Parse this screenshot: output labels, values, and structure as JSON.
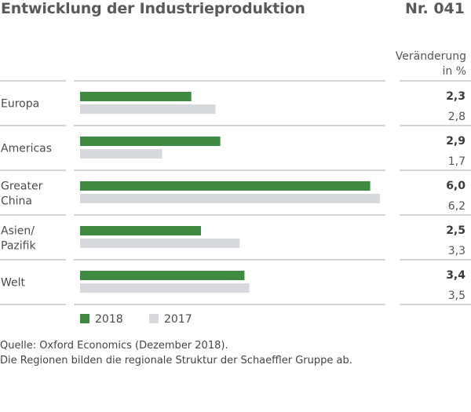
{
  "header": {
    "title": "Entwicklung der Industrieproduktion",
    "number": "Nr. 041"
  },
  "column_header": {
    "line1": "Veränderung",
    "line2": "in %"
  },
  "colors": {
    "series_2018": "#3f8a43",
    "series_2017": "#d7d9dc",
    "rule": "#aaaaaa"
  },
  "chart_data": {
    "type": "bar",
    "orientation": "horizontal",
    "categories": [
      [
        "Europa"
      ],
      [
        "Americas"
      ],
      [
        "Greater",
        "China"
      ],
      [
        "Asien/",
        "Pazifik"
      ],
      [
        "Welt"
      ]
    ],
    "series": [
      {
        "name": "2018",
        "values": [
          2.3,
          2.9,
          6.0,
          2.5,
          3.4
        ],
        "labels": [
          "2,3",
          "2,9",
          "6,0",
          "2,5",
          "3,4"
        ]
      },
      {
        "name": "2017",
        "values": [
          2.8,
          1.7,
          6.2,
          3.3,
          3.5
        ],
        "labels": [
          "2,8",
          "1,7",
          "6,2",
          "3,3",
          "3,5"
        ]
      }
    ],
    "title": "Entwicklung der Industrieproduktion",
    "legend_position": "bottom-left",
    "grid": false
  },
  "footer": {
    "source": "Quelle: Oxford Economics (Dezember 2018).",
    "note": "Die Regionen bilden die regionale Struktur der Schaeffler Gruppe ab."
  }
}
